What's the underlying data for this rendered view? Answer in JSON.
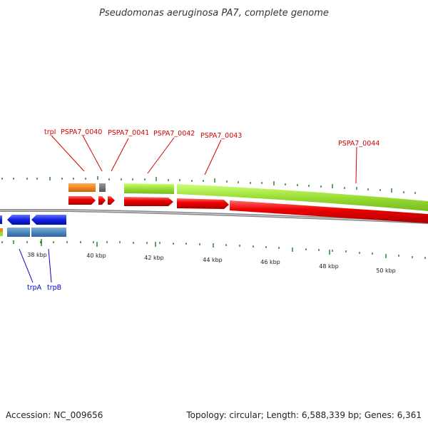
{
  "title": "Pseudomonas aeruginosa PA7, complete genome",
  "accession": "Accession: NC_009656",
  "topology": "Topology: circular; Length: 6,588,339 bp; Genes: 6,361",
  "ruler_labels": [
    "38 kbp",
    "40 kbp",
    "42 kbp",
    "44 kbp",
    "46 kbp",
    "48 kbp",
    "50 kbp"
  ],
  "gene_labels_top": [
    "trpI",
    "PSPA7_0040",
    "PSPA7_0041",
    "PSPA7_0042",
    "PSPA7_0043",
    "PSPA7_0044"
  ],
  "gene_labels_bottom": [
    "trpA",
    "trpB"
  ],
  "colors": {
    "forward_cds": "#ee0000",
    "reverse_cds": "#1020e0",
    "gene_green": "#99dd33",
    "gene_orange": "#ee8822",
    "gene_steel": "#4a88bb",
    "backbone": "#888888",
    "tick": "#007700",
    "label_red": "#d20000",
    "label_blue": "#0000cc"
  }
}
